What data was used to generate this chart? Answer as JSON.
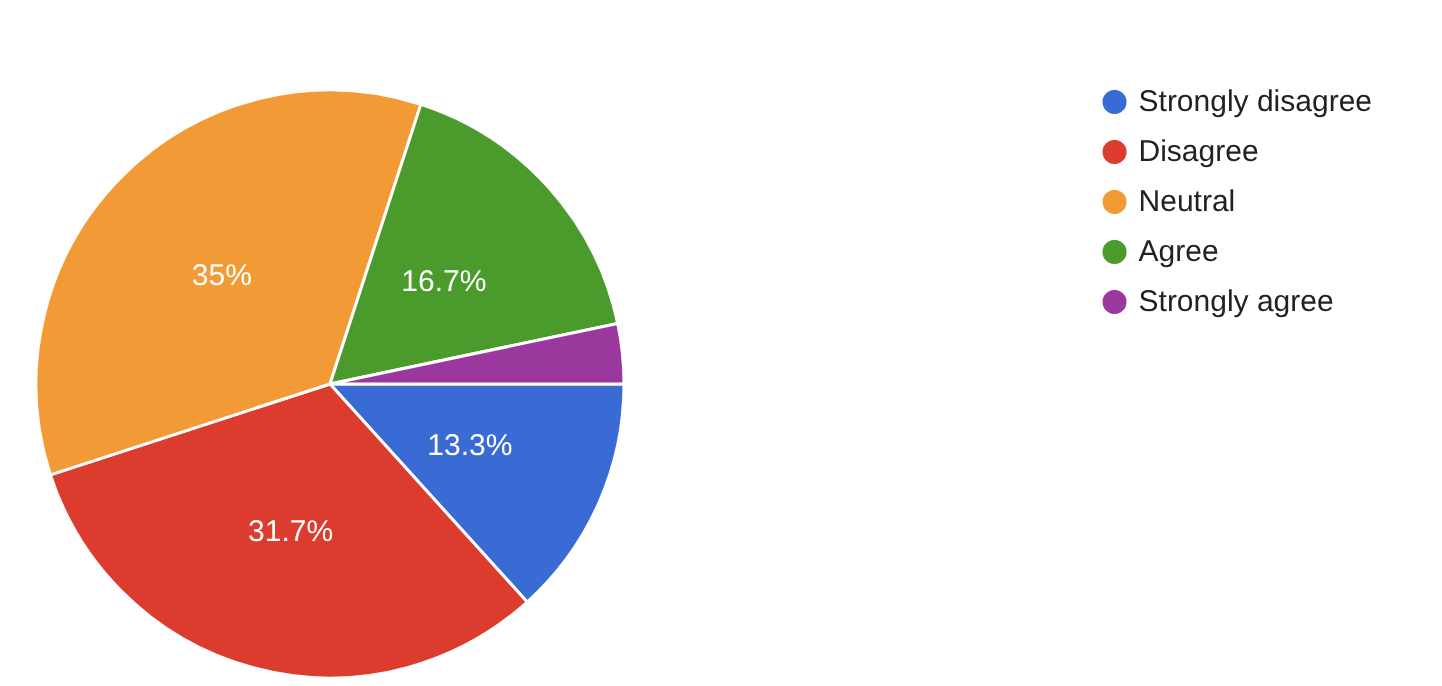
{
  "chart_data": {
    "type": "pie",
    "categories": [
      "Strongly disagree",
      "Disagree",
      "Neutral",
      "Agree",
      "Strongly agree"
    ],
    "values": [
      13.3,
      31.7,
      35,
      16.7,
      3.3
    ],
    "colors": [
      "#3a6bd4",
      "#dc3c2e",
      "#f29b36",
      "#4a9a2c",
      "#9a389e"
    ],
    "value_labels": [
      "13.3%",
      "31.7%",
      "35%",
      "16.7%",
      null
    ],
    "legend": "top right"
  }
}
